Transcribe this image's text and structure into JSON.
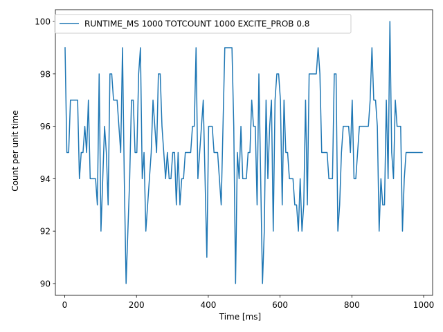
{
  "chart_data": {
    "type": "line",
    "title": "",
    "xlabel": "Time [ms]",
    "ylabel": "Count per unit time",
    "xlim": [
      -26,
      1025
    ],
    "ylim": [
      89.55,
      100.45
    ],
    "xticks": [
      0,
      200,
      400,
      600,
      800,
      1000
    ],
    "xtick_labels": [
      "0",
      "200",
      "400",
      "600",
      "800",
      "1000"
    ],
    "yticks": [
      90,
      92,
      94,
      96,
      98,
      100
    ],
    "ytick_labels": [
      "90",
      "92",
      "94",
      "96",
      "98",
      "100"
    ],
    "grid": false,
    "legend_position": "top-left",
    "line_color": "#1f77b4",
    "series": [
      {
        "name": "RUNTIME_MS 1000 TOTCOUNT 1000 EXCITE_PROB 0.8",
        "x": [
          1,
          6,
          11,
          16,
          21,
          26,
          31,
          36,
          41,
          46,
          51,
          56,
          61,
          66,
          71,
          76,
          81,
          86,
          91,
          96,
          101,
          106,
          111,
          116,
          121,
          126,
          131,
          136,
          141,
          146,
          151,
          156,
          161,
          166,
          171,
          176,
          181,
          186,
          191,
          196,
          201,
          206,
          211,
          216,
          221,
          226,
          231,
          236,
          241,
          246,
          251,
          256,
          261,
          266,
          271,
          276,
          281,
          286,
          291,
          296,
          301,
          306,
          311,
          316,
          321,
          326,
          331,
          336,
          341,
          346,
          351,
          356,
          361,
          366,
          371,
          376,
          381,
          386,
          391,
          396,
          401,
          406,
          411,
          416,
          421,
          426,
          431,
          436,
          441,
          446,
          451,
          456,
          461,
          466,
          471,
          476,
          481,
          486,
          491,
          496,
          501,
          506,
          511,
          516,
          521,
          526,
          531,
          536,
          541,
          546,
          551,
          556,
          561,
          566,
          571,
          576,
          581,
          586,
          591,
          596,
          601,
          606,
          611,
          616,
          621,
          626,
          631,
          636,
          641,
          646,
          651,
          656,
          661,
          666,
          671,
          676,
          681,
          686,
          691,
          696,
          701,
          706,
          711,
          716,
          721,
          726,
          731,
          736,
          741,
          746,
          751,
          756,
          761,
          766,
          771,
          776,
          781,
          786,
          791,
          796,
          801,
          806,
          811,
          816,
          821,
          826,
          831,
          836,
          841,
          846,
          851,
          856,
          861,
          866,
          871,
          876,
          881,
          886,
          891,
          896,
          901,
          906,
          911,
          916,
          921,
          926,
          931,
          936,
          941,
          946,
          951,
          956,
          961,
          966,
          971,
          976,
          981,
          986,
          991,
          996
        ],
        "y": [
          99,
          95,
          95,
          97,
          97,
          97,
          97,
          97,
          94,
          95,
          95,
          96,
          95,
          97,
          94,
          94,
          94,
          94,
          93,
          98,
          92,
          94,
          96,
          95,
          93,
          98,
          98,
          97,
          97,
          97,
          96,
          95,
          99,
          94,
          90,
          92,
          94,
          97,
          97,
          95,
          95,
          98,
          99,
          94,
          95,
          92,
          93,
          94,
          95,
          97,
          96,
          95,
          98,
          98,
          96,
          95,
          94,
          95,
          94,
          94,
          95,
          95,
          93,
          95,
          93,
          94,
          94,
          95,
          95,
          95,
          95,
          96,
          96,
          99,
          94,
          95,
          96,
          97,
          94,
          91,
          96,
          96,
          96,
          95,
          95,
          95,
          94,
          93,
          96,
          99,
          99,
          99,
          99,
          99,
          96,
          90,
          95,
          94,
          96,
          94,
          94,
          94,
          95,
          95,
          97,
          96,
          96,
          93,
          98,
          94,
          90,
          92,
          97,
          94,
          96,
          97,
          92,
          97,
          98,
          98,
          97,
          93,
          97,
          95,
          95,
          94,
          94,
          94,
          93,
          93,
          92,
          94,
          92,
          93,
          97,
          93,
          98,
          98,
          98,
          98,
          98,
          99,
          98,
          95,
          95,
          95,
          95,
          94,
          94,
          94,
          98,
          98,
          92,
          93,
          95,
          96,
          96,
          96,
          96,
          95,
          97,
          94,
          94,
          95,
          96,
          96,
          96,
          96,
          96,
          96,
          97,
          99,
          97,
          97,
          96,
          92,
          94,
          93,
          93,
          97,
          94,
          100,
          95,
          94,
          97,
          96,
          96,
          96,
          92,
          94,
          95,
          95,
          95,
          95,
          95,
          95,
          95,
          95,
          95,
          95
        ]
      }
    ]
  }
}
